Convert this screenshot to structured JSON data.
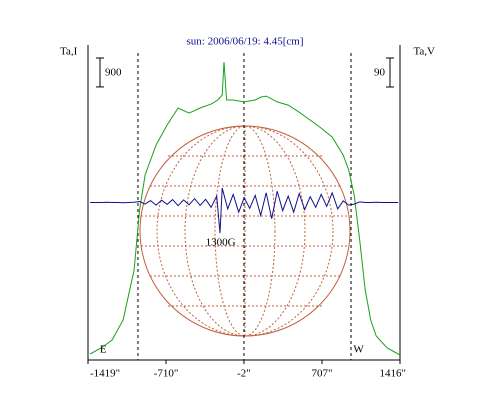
{
  "chart_data": {
    "type": "line",
    "title": "sun: 2006/06/19: 4.45[cm]",
    "xlim": [
      -1419,
      1416
    ],
    "xticks": [
      {
        "value": -1419,
        "label": "-1419\""
      },
      {
        "value": -710,
        "label": "-710\""
      },
      {
        "value": -2,
        "label": "-2\""
      },
      {
        "value": 707,
        "label": "707\""
      },
      {
        "value": 1416,
        "label": "1416\""
      }
    ],
    "ylim": [
      0,
      9800
    ],
    "y2lim": [
      -489,
      489
    ],
    "dashed_lines": [
      -965,
      -2,
      971
    ],
    "series": [
      {
        "name": "Ta,I",
        "color": "#1aa01a",
        "axis": "y",
        "scale": 900,
        "x": [
          -1400,
          -1300,
          -1200,
          -1100,
          -1000,
          -950,
          -900,
          -800,
          -700,
          -600,
          -500,
          -400,
          -300,
          -240,
          -200,
          -183,
          -160,
          -100,
          0,
          100,
          150,
          200,
          300,
          400,
          500,
          600,
          700,
          800,
          900,
          950,
          1000,
          1050,
          1100,
          1150,
          1200,
          1300,
          1416
        ],
        "values": [
          187,
          373,
          622,
          1244,
          2800,
          4667,
          5755,
          6688,
          7310,
          7840,
          7680,
          7840,
          7960,
          8090,
          8245,
          9270,
          8090,
          8090,
          8030,
          8090,
          8180,
          8210,
          8030,
          7930,
          7710,
          7465,
          7215,
          6935,
          6375,
          5910,
          5130,
          3730,
          2180,
          1244,
          747,
          373,
          156
        ]
      },
      {
        "name": "Ta,V",
        "color": "#10108a",
        "axis": "y2",
        "scale": 90,
        "x": [
          -1400,
          -1350,
          -1300,
          -1250,
          -1200,
          -1150,
          -1100,
          -1050,
          -1000,
          -950,
          -900,
          -850,
          -800,
          -750,
          -700,
          -650,
          -600,
          -550,
          -500,
          -450,
          -400,
          -350,
          -300,
          -250,
          -220,
          -200,
          -150,
          -100,
          -50,
          0,
          50,
          100,
          150,
          200,
          250,
          300,
          350,
          400,
          450,
          500,
          550,
          600,
          650,
          700,
          750,
          800,
          850,
          900,
          950,
          1000,
          1050,
          1100,
          1150,
          1200,
          1250,
          1300,
          1350,
          1400
        ],
        "values": [
          0,
          0,
          0,
          1,
          0,
          0,
          -1,
          0,
          1,
          3,
          -5,
          6,
          -8,
          7,
          -6,
          9,
          -10,
          8,
          -7,
          12,
          -9,
          10,
          -15,
          20,
          -95,
          45,
          -20,
          25,
          -30,
          15,
          -18,
          22,
          -40,
          30,
          -50,
          35,
          -25,
          20,
          -30,
          28,
          -22,
          18,
          -15,
          25,
          -12,
          30,
          -20,
          5,
          -8,
          -5,
          2,
          0,
          0,
          1,
          0,
          0,
          0,
          0
        ]
      }
    ],
    "annotations": [
      {
        "text": "E",
        "x": -1280
      },
      {
        "text": "W",
        "x": 1040
      },
      {
        "text": "1300G",
        "x": -350
      }
    ]
  }
}
